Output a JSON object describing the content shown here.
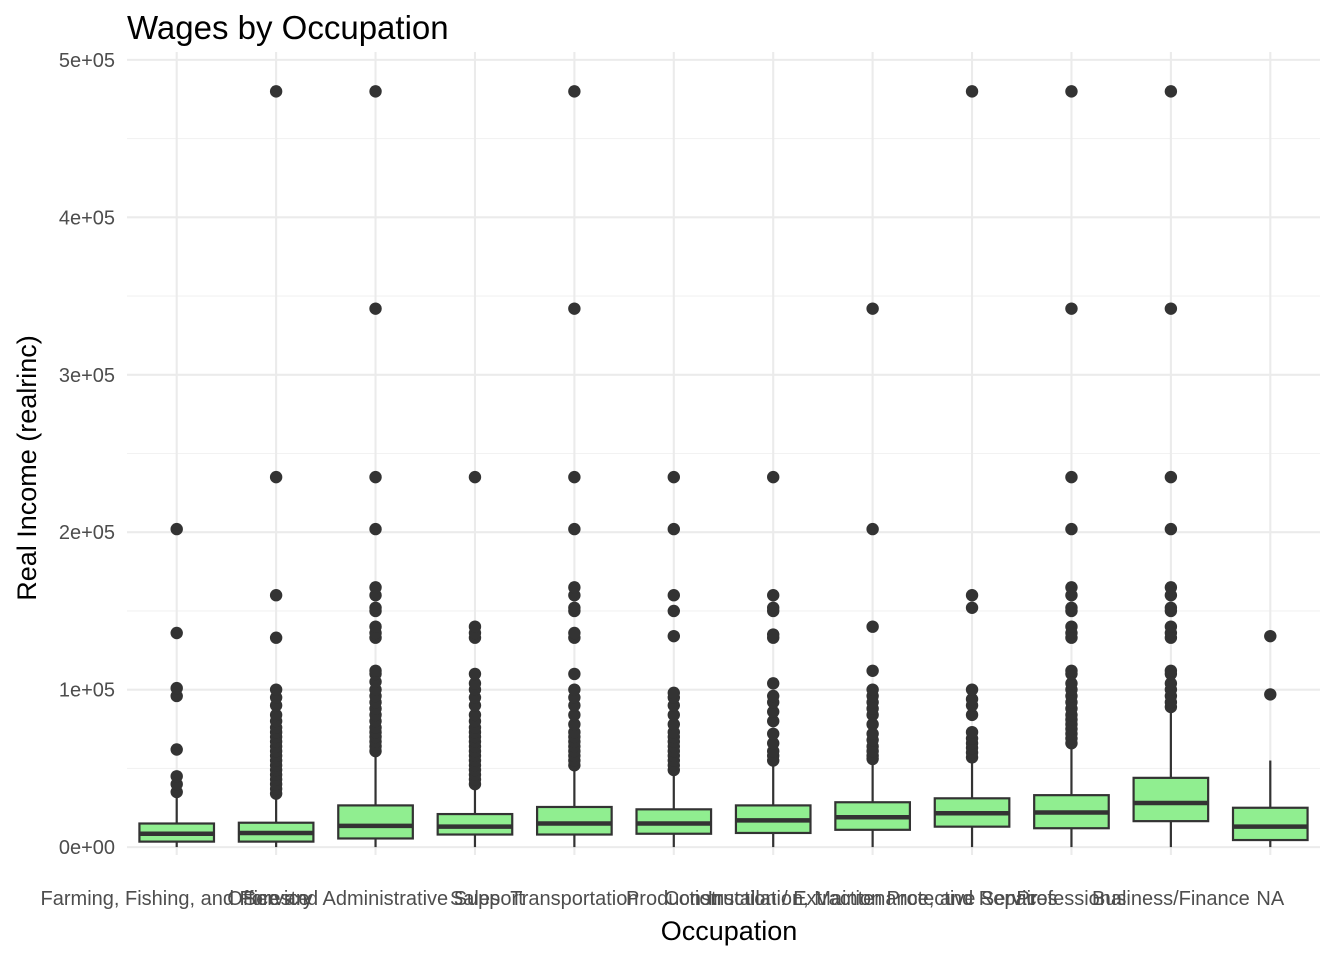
{
  "chart_data": {
    "type": "box",
    "title": "Wages by Occupation",
    "xlabel": "Occupation",
    "ylabel": "Real Income (realrinc)",
    "ylim": [
      -5000,
      505000
    ],
    "yticks": [
      0,
      100000,
      200000,
      300000,
      400000,
      500000
    ],
    "ytick_labels": [
      "0e+00",
      "1e+05",
      "2e+05",
      "3e+05",
      "4e+05",
      "5e+05"
    ],
    "categories": [
      "Farming, Fishing, and Forestry",
      "Service",
      "Office and Administrative Support",
      "Sales",
      "Transportation",
      "Production",
      "Construction / Extraction",
      "Installation, Maintenance, and Repair",
      "Protective Services",
      "Professional",
      "Business/Finance",
      "NA"
    ],
    "box_fill": "#90ee90",
    "box_stroke": "#333333",
    "boxes": [
      {
        "q1": 3500,
        "median": 8500,
        "q3": 15000,
        "wlo": 0,
        "whi": 32000,
        "outliers": [
          35000,
          40000,
          45000,
          62000,
          96000,
          101000,
          136000,
          202000
        ]
      },
      {
        "q1": 3500,
        "median": 9000,
        "q3": 15500,
        "wlo": 0,
        "whi": 32000,
        "outliers": [
          34000,
          37000,
          40000,
          43000,
          46000,
          49000,
          52000,
          55000,
          58000,
          61000,
          64000,
          67000,
          70000,
          73000,
          76000,
          80000,
          84000,
          90000,
          95000,
          100000,
          133000,
          160000,
          235000,
          480000
        ]
      },
      {
        "q1": 5500,
        "median": 13500,
        "q3": 26500,
        "wlo": 0,
        "whi": 58000,
        "outliers": [
          61000,
          64000,
          67000,
          70000,
          73000,
          76000,
          80000,
          84000,
          88000,
          92000,
          96000,
          100000,
          105000,
          110000,
          112000,
          133000,
          136000,
          140000,
          150000,
          152000,
          160000,
          165000,
          202000,
          235000,
          342000,
          480000
        ]
      },
      {
        "q1": 8000,
        "median": 13000,
        "q3": 21000,
        "wlo": 0,
        "whi": 38000,
        "outliers": [
          40000,
          43000,
          46000,
          49000,
          52000,
          55000,
          58000,
          61000,
          64000,
          67000,
          70000,
          73000,
          76000,
          80000,
          84000,
          90000,
          95000,
          100000,
          104000,
          110000,
          133000,
          136000,
          140000,
          235000
        ]
      },
      {
        "q1": 8000,
        "median": 15000,
        "q3": 25500,
        "wlo": 0,
        "whi": 49000,
        "outliers": [
          52000,
          55000,
          58000,
          61000,
          64000,
          67000,
          70000,
          73000,
          78000,
          84000,
          90000,
          95000,
          100000,
          110000,
          133000,
          136000,
          150000,
          152000,
          160000,
          165000,
          202000,
          235000,
          342000,
          480000
        ]
      },
      {
        "q1": 8500,
        "median": 15000,
        "q3": 24000,
        "wlo": 0,
        "whi": 46000,
        "outliers": [
          49000,
          52000,
          55000,
          58000,
          61000,
          64000,
          67000,
          70000,
          73000,
          78000,
          84000,
          90000,
          95000,
          98000,
          134000,
          150000,
          160000,
          202000,
          235000
        ]
      },
      {
        "q1": 9000,
        "median": 17000,
        "q3": 26500,
        "wlo": 0,
        "whi": 52000,
        "outliers": [
          55000,
          58000,
          61000,
          66000,
          72000,
          80000,
          86000,
          92000,
          96000,
          104000,
          133000,
          135000,
          150000,
          152000,
          160000,
          235000
        ]
      },
      {
        "q1": 11000,
        "median": 19000,
        "q3": 28500,
        "wlo": 0,
        "whi": 54000,
        "outliers": [
          56000,
          58000,
          61000,
          64000,
          68000,
          72000,
          78000,
          84000,
          88000,
          92000,
          96000,
          100000,
          112000,
          140000,
          202000,
          342000
        ]
      },
      {
        "q1": 13000,
        "median": 21500,
        "q3": 31000,
        "wlo": 0,
        "whi": 55000,
        "outliers": [
          57000,
          60000,
          63000,
          66000,
          69000,
          73000,
          84000,
          90000,
          94000,
          100000,
          152000,
          160000,
          480000
        ]
      },
      {
        "q1": 12000,
        "median": 22000,
        "q3": 33000,
        "wlo": 0,
        "whi": 64000,
        "outliers": [
          66000,
          69000,
          72000,
          75000,
          78000,
          81000,
          84000,
          88000,
          92000,
          96000,
          100000,
          104000,
          110000,
          112000,
          133000,
          136000,
          140000,
          150000,
          152000,
          160000,
          165000,
          202000,
          235000,
          342000,
          480000
        ]
      },
      {
        "q1": 16500,
        "median": 28000,
        "q3": 44000,
        "wlo": 0,
        "whi": 86000,
        "outliers": [
          89000,
          92000,
          96000,
          100000,
          104000,
          110000,
          112000,
          133000,
          136000,
          140000,
          150000,
          152000,
          160000,
          165000,
          202000,
          235000,
          342000,
          480000
        ]
      },
      {
        "q1": 4500,
        "median": 13000,
        "q3": 25000,
        "wlo": 0,
        "whi": 55000,
        "outliers": [
          97000,
          134000
        ]
      }
    ]
  }
}
